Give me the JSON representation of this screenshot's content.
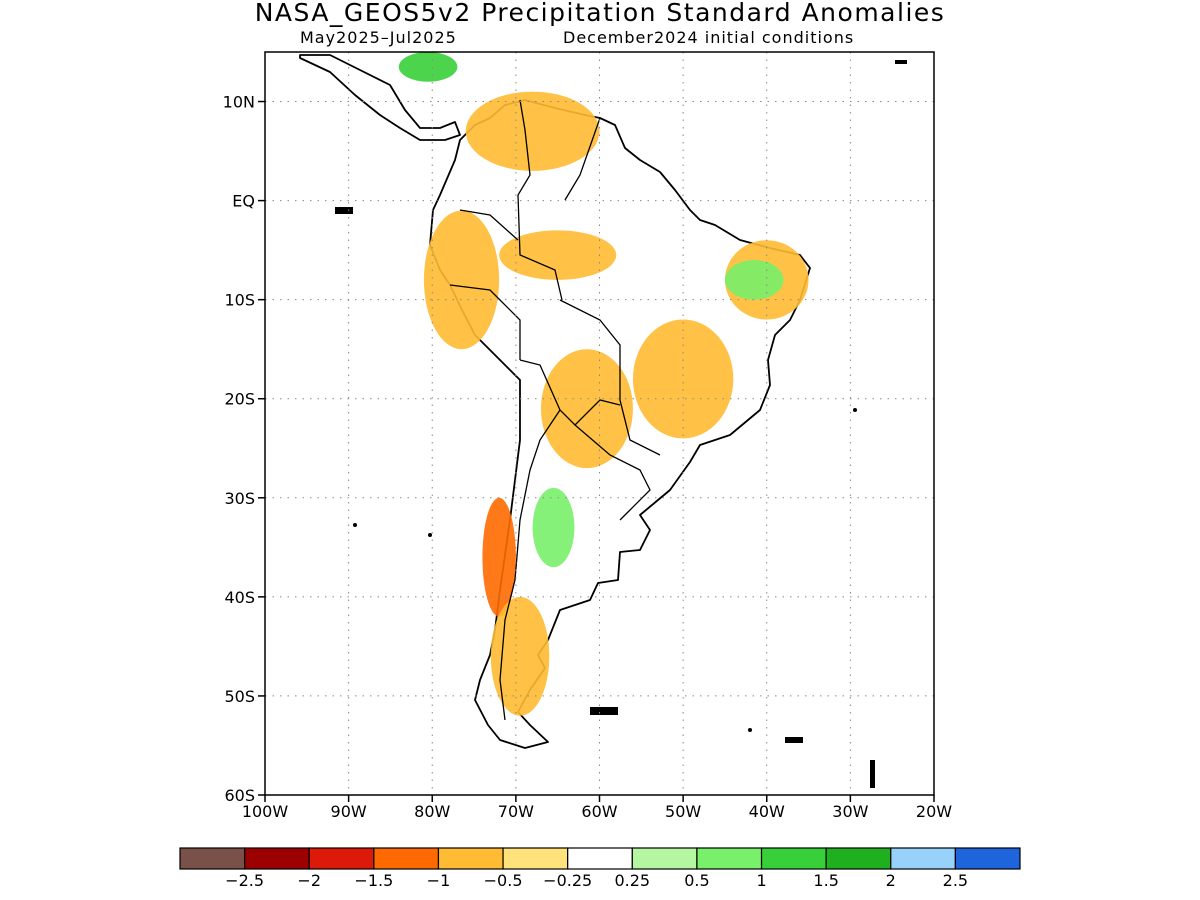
{
  "title": "NASA_GEOS5v2 Precipitation Standard Anomalies",
  "subtitle_left": "May2025–Jul2025",
  "subtitle_right": "December2024 initial conditions",
  "map": {
    "lon_range": [
      -100,
      -20
    ],
    "lat_range": [
      -60,
      15
    ],
    "lat_ticks": [
      {
        "value": 10,
        "label": "10N"
      },
      {
        "value": 0,
        "label": "EQ"
      },
      {
        "value": -10,
        "label": "10S"
      },
      {
        "value": -20,
        "label": "20S"
      },
      {
        "value": -30,
        "label": "30S"
      },
      {
        "value": -40,
        "label": "40S"
      },
      {
        "value": -50,
        "label": "50S"
      },
      {
        "value": -60,
        "label": "60S"
      }
    ],
    "lon_ticks": [
      {
        "value": -100,
        "label": "100W"
      },
      {
        "value": -90,
        "label": "90W"
      },
      {
        "value": -80,
        "label": "80W"
      },
      {
        "value": -70,
        "label": "70W"
      },
      {
        "value": -60,
        "label": "60W"
      },
      {
        "value": -50,
        "label": "50W"
      },
      {
        "value": -40,
        "label": "40W"
      },
      {
        "value": -30,
        "label": "30W"
      },
      {
        "value": -20,
        "label": "20W"
      }
    ],
    "grid": "dotted"
  },
  "colorbar": {
    "colors": [
      "#7a5148",
      "#9c0000",
      "#dd1a0a",
      "#ff6a00",
      "#ffbb33",
      "#ffe37a",
      "#ffffff",
      "#b4f7a0",
      "#78f06a",
      "#38d038",
      "#1eb01e",
      "#96d2fa",
      "#1e64dc"
    ],
    "labels": [
      "−2.5",
      "−2",
      "−1.5",
      "−1",
      "−0.5",
      "−0.25",
      "0.25",
      "0.5",
      "1",
      "1.5",
      "2",
      "2.5"
    ]
  },
  "anomaly_regions": [
    {
      "label": "Colombia/Venezuela dry",
      "color": "#ffbb33",
      "lon": [
        -76,
        -60
      ],
      "lat": [
        3,
        11
      ]
    },
    {
      "label": "Central America wet",
      "color": "#38d038",
      "lon": [
        -84,
        -77
      ],
      "lat": [
        12,
        15
      ]
    },
    {
      "label": "Amazon dry",
      "color": "#ffbb33",
      "lon": [
        -72,
        -58
      ],
      "lat": [
        -8,
        -3
      ]
    },
    {
      "label": "Ecuador/Peru dry",
      "color": "#ffbb33",
      "lon": [
        -81,
        -72
      ],
      "lat": [
        -15,
        -1
      ]
    },
    {
      "label": "Central Brazil dry",
      "color": "#ffbb33",
      "lon": [
        -56,
        -44
      ],
      "lat": [
        -24,
        -12
      ]
    },
    {
      "label": "NE Brazil dry",
      "color": "#ffbb33",
      "lon": [
        -45,
        -35
      ],
      "lat": [
        -12,
        -4
      ]
    },
    {
      "label": "NE Brazil wet",
      "color": "#78f06a",
      "lon": [
        -45,
        -38
      ],
      "lat": [
        -10,
        -6
      ]
    },
    {
      "label": "Bolivia/Paraguay dry",
      "color": "#ffbb33",
      "lon": [
        -67,
        -56
      ],
      "lat": [
        -27,
        -15
      ]
    },
    {
      "label": "Argentina wet",
      "color": "#78f06a",
      "lon": [
        -68,
        -63
      ],
      "lat": [
        -37,
        -29
      ]
    },
    {
      "label": "Chile dry",
      "color": "#ff6a00",
      "lon": [
        -74,
        -70
      ],
      "lat": [
        -42,
        -30
      ]
    },
    {
      "label": "Patagonia dry",
      "color": "#ffbb33",
      "lon": [
        -73,
        -66
      ],
      "lat": [
        -52,
        -40
      ]
    }
  ]
}
